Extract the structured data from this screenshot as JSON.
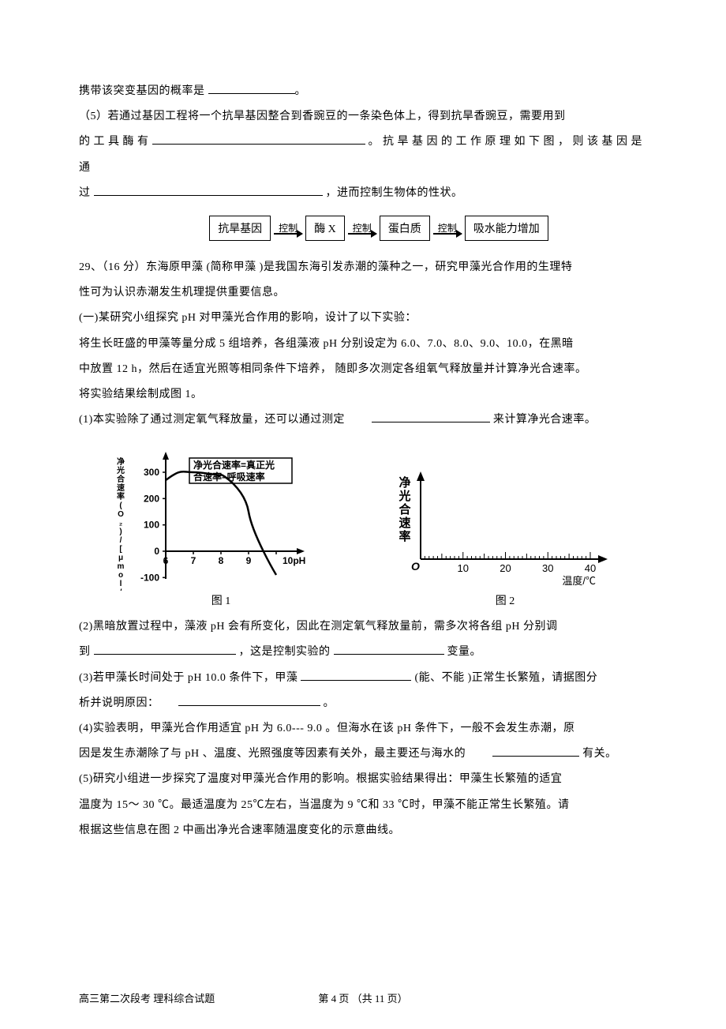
{
  "intro_line": "携带该突变基因的概率是",
  "intro_blank": "                    ",
  "q5_prefix": "（5）若通过基因工程将一个抗旱基因整合到香豌豆的一条染色体上，得到抗旱香豌豆，需要用到",
  "q5_line2_prefix": "的 工 具 酶 有",
  "q5_line2_suffix": "。 抗 旱 基 因 的 工 作 原 理 如 下 图 ， 则 该 基 因 是 通",
  "q5_line3_prefix": "过",
  "q5_line3_suffix": "，进而控制生物体的性状。",
  "flow": {
    "box1": "抗旱基因",
    "arrow1": "控制",
    "box2": "酶 X",
    "arrow2": "控制",
    "box3": "蛋白质",
    "arrow3": "控制",
    "box4": "吸水能力增加"
  },
  "q29_header": "29、（16 分）东海原甲藻   (简称甲藻  )是我国东海引发赤潮的藻种之一，研究甲藻光合作用的生理特",
  "q29_line2": "性可为认识赤潮发生机理提供重要信息。",
  "section1_line1": "(一)某研究小组探究    pH 对甲藻光合作用的影响，设计了以下实验：",
  "section1_line2": "将生长旺盛的甲藻等量分成      5 组培养，各组藻液   pH 分别设定为   6.0、7.0、8.0、9.0、10.0，在黑暗",
  "section1_line3": "中放置  12 h，然后在适宜光照等相同条件下培养，      随即多次测定各组氧气释放量并计算净光合速率。",
  "section1_line4": "将实验结果绘制成图    1。",
  "q1_prefix": "(1)本实验除了通过测定氧气释放量，还可以通过测定",
  "q1_suffix": "来计算净光合速率。",
  "chart1": {
    "type": "line",
    "ylabel_cn": "净光合速率",
    "yunit": "(O₂)/[μmol/(mg · h)]",
    "legend": "净光合速率=真正光\n合速率–呼吸速率",
    "yticks": [
      -100,
      0,
      100,
      200,
      300
    ],
    "xticks": [
      6,
      7,
      8,
      9,
      10
    ],
    "xlabel": "10pH",
    "x_values": [
      6,
      7,
      8,
      9,
      10
    ],
    "y_values": [
      270,
      300,
      290,
      150,
      -90
    ],
    "line_color": "#000000",
    "background": "#ffffff",
    "axis_color": "#000000"
  },
  "chart2": {
    "type": "axes_only",
    "ylabel": "净光合速率",
    "xlabel": "温度/℃",
    "xticks": [
      10,
      20,
      30,
      40
    ],
    "xrange": [
      0,
      40
    ],
    "origin_label": "O",
    "axis_color": "#000000",
    "background": "#ffffff"
  },
  "caption1": "图 1",
  "caption2": "图 2",
  "q2_prefix": "(2)黑暗放置过程中，藻液     pH  会有所变化，因此在测定氧气释放量前，需多次将各组       pH  分别调",
  "q2_line2_prefix": "到",
  "q2_line2_mid": "，这是控制实验的",
  "q2_line2_suffix": "变量。",
  "q3_prefix": "(3)若甲藻长时间处于   pH 10.0  条件下，甲藻",
  "q3_suffix": " (能、不能 )正常生长繁殖，请据图分",
  "q3_line2_prefix": "析并说明原因：",
  "q3_line2_suffix": "。",
  "q4_line1": "(4)实验表明，甲藻光合作用适宜      pH 为 6.0--- 9.0 。但海水在该   pH 条件下，一般不会发生赤潮，原",
  "q4_line2_prefix": "因是发生赤潮除了与    pH 、温度、光照强度等因素有关外，最主要还与海水的",
  "q4_line2_suffix": "有关。",
  "q5b_line1": "(5)研究小组进一步探究了温度对甲藻光合作用的影响。根据实验结果得出：甲藻生长繁殖的适宜",
  "q5b_line2": "温度为 15～ 30 ℃。最适温度为   25℃左右，当温度为   9 ℃和 33 ℃时，甲藻不能正常生长繁殖。请",
  "q5b_line3": "根据这些信息在图    2 中画出净光合速率随温度变化的示意曲线。",
  "footer_left": "高三第二次段考   理科综合试题",
  "footer_center": "第  4  页  （共 11 页）"
}
